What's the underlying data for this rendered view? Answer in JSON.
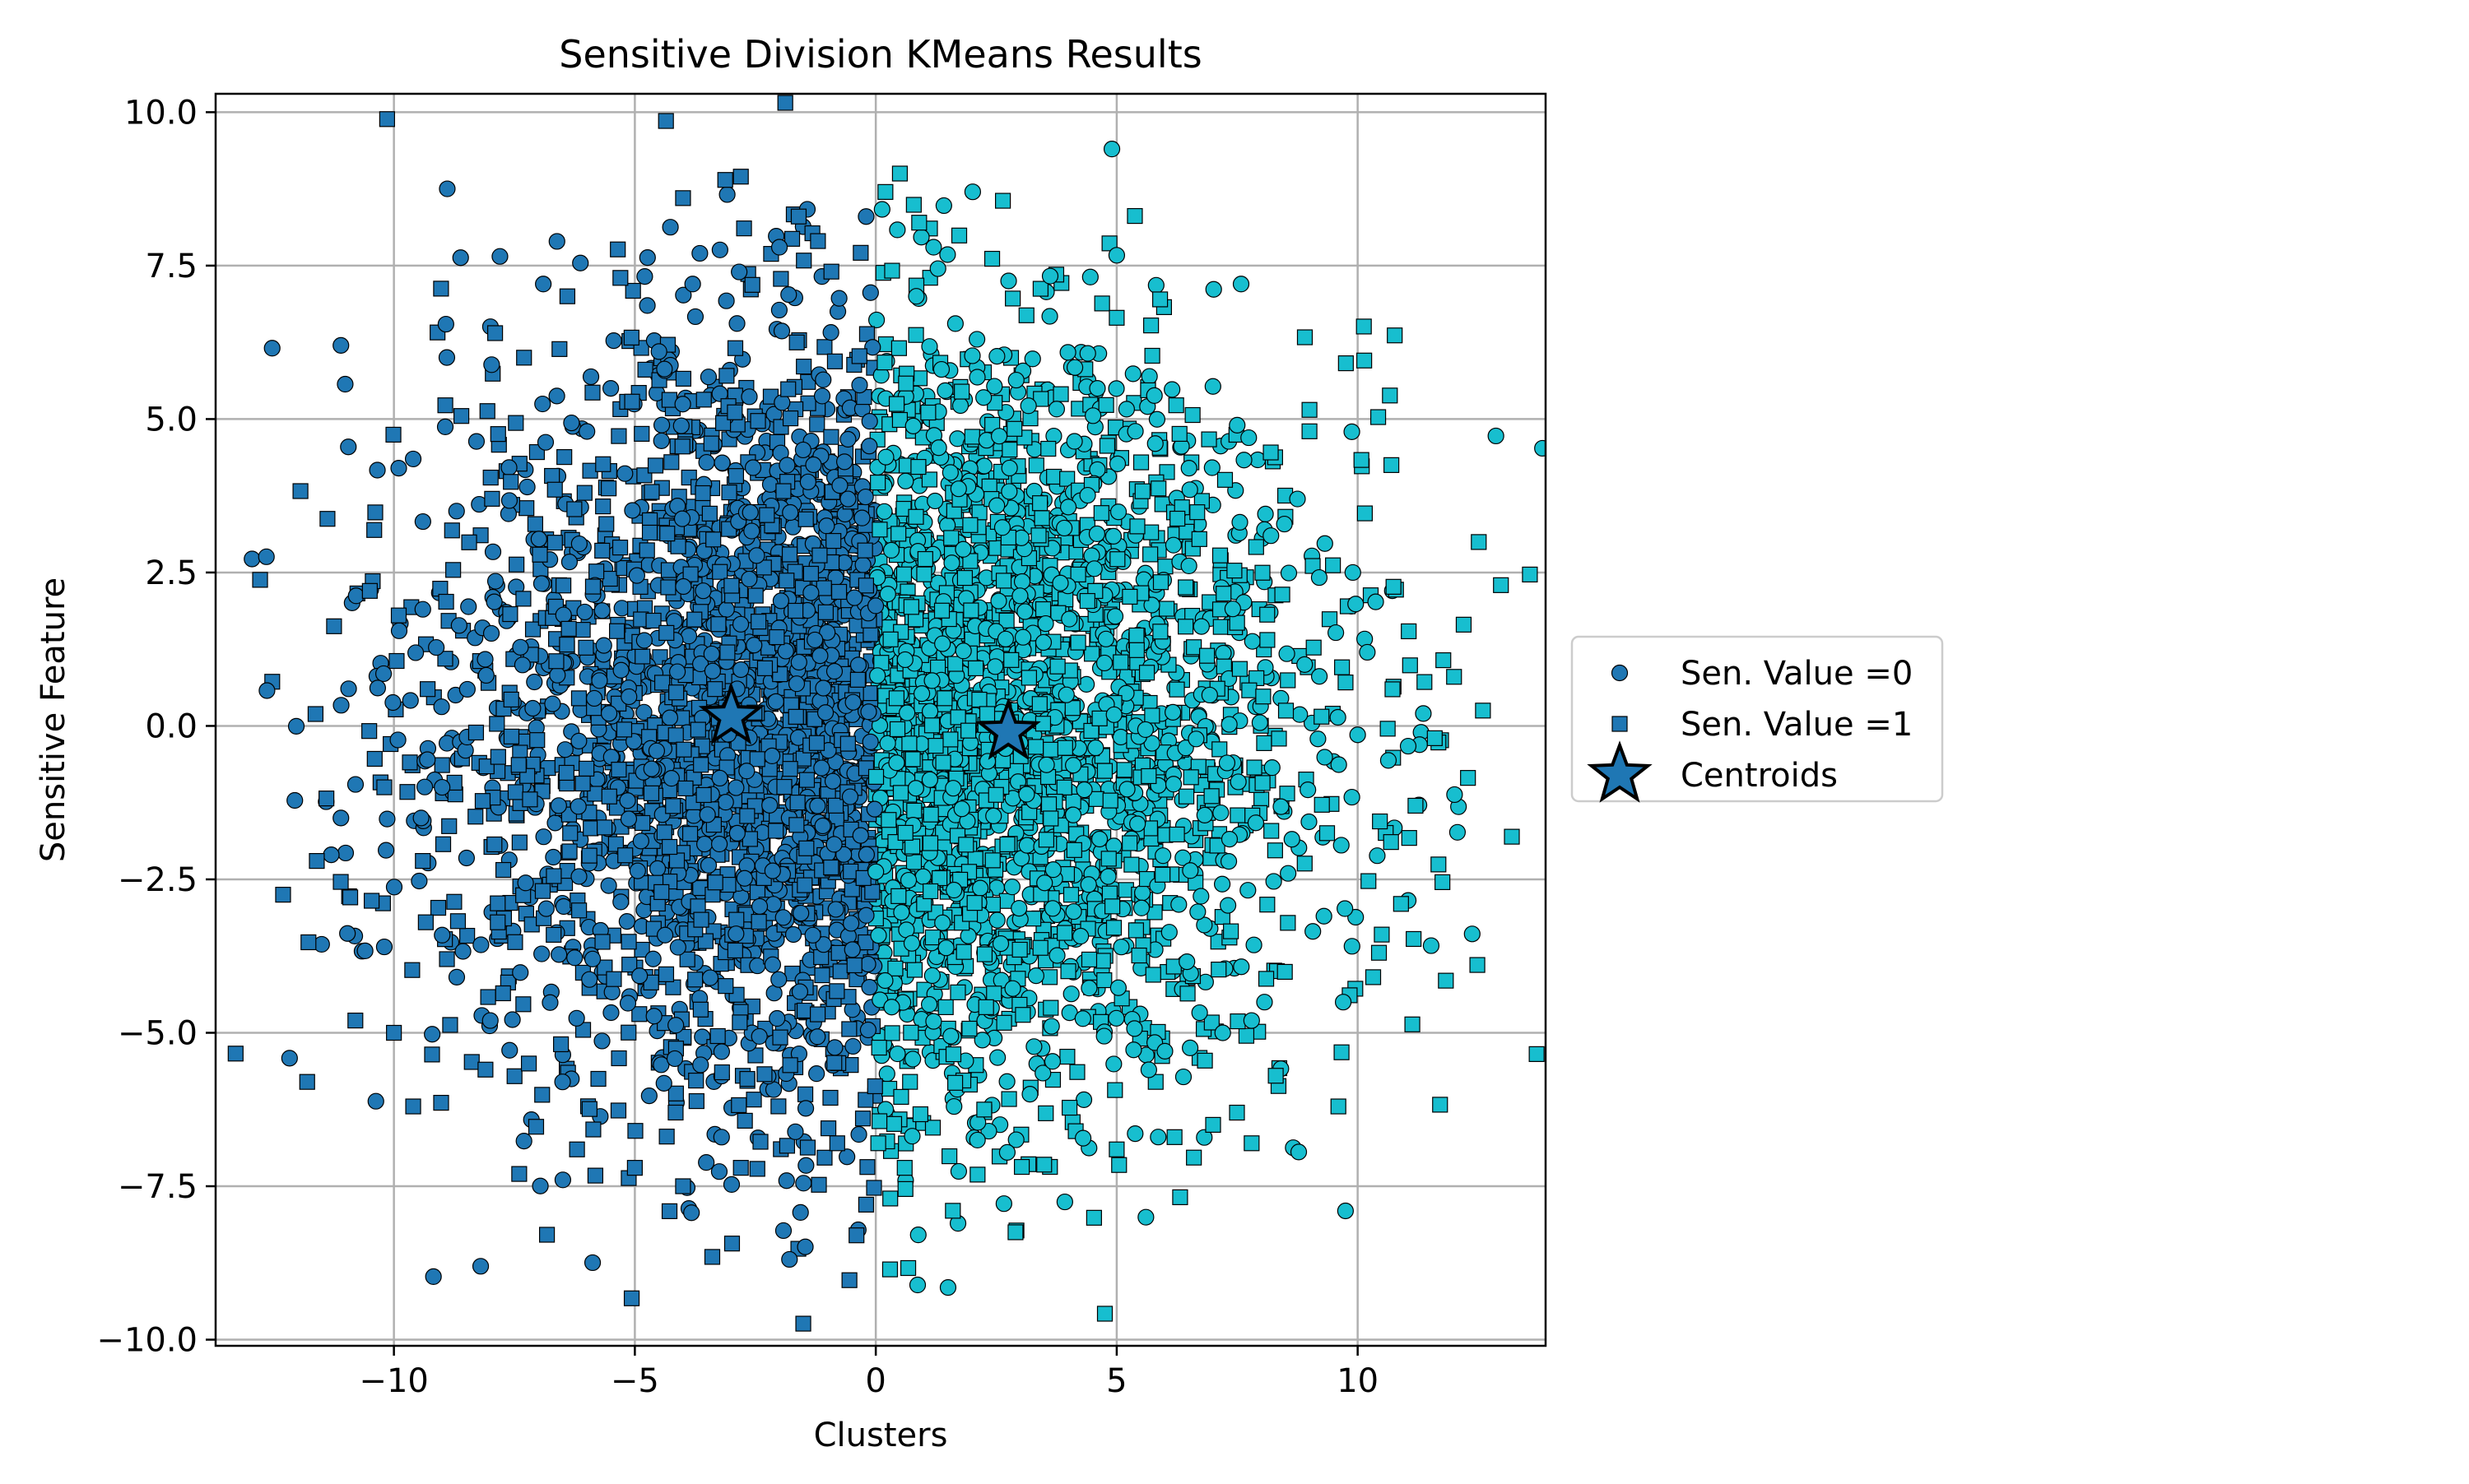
{
  "chart_data": {
    "type": "scatter",
    "title": "Sensitive Division KMeans Results",
    "xlabel": "Clusters",
    "ylabel": "Sensitive Feature",
    "xlim": [
      -13.7,
      13.9
    ],
    "ylim": [
      -10.1,
      10.3
    ],
    "xticks": [
      -10,
      -5,
      0,
      5,
      10
    ],
    "xtick_labels": [
      "−10",
      "−5",
      "0",
      "5",
      "10"
    ],
    "yticks": [
      -10.0,
      -7.5,
      -5.0,
      -2.5,
      0.0,
      2.5,
      5.0,
      7.5,
      10.0
    ],
    "ytick_labels": [
      "−10.0",
      "−7.5",
      "−5.0",
      "−2.5",
      "0.0",
      "2.5",
      "5.0",
      "7.5",
      "10.0"
    ],
    "grid": true,
    "legend_position": "outside right",
    "cluster_colors": [
      "#1f77b4",
      "#17becf"
    ],
    "series": [
      {
        "name": "Sen. Value =0",
        "marker": "circle",
        "color": "#1f77b4",
        "points": [
          [
            -11.1,
            6.2
          ],
          [
            -9.9,
            4.2
          ],
          [
            -9.6,
            4.35
          ],
          [
            -7.8,
            7.65
          ],
          [
            -6.9,
            7.2
          ],
          [
            -11.3,
            -2.1
          ],
          [
            -11.1,
            -1.5
          ],
          [
            -10.2,
            -3.6
          ],
          [
            -9.4,
            1.9
          ],
          [
            -8.7,
            3.5
          ],
          [
            -3.8,
            7.2
          ],
          [
            -2.0,
            7.8
          ],
          [
            -1.5,
            -7.45
          ],
          [
            -0.2,
            8.3
          ],
          [
            -3.2,
            -6.7
          ],
          [
            -5.5,
            5.5
          ],
          [
            -6.5,
            -5.8
          ],
          [
            -8.0,
            -4.8
          ],
          [
            -9.0,
            -1.0
          ],
          [
            -4.5,
            6.1
          ],
          [
            4.9,
            9.4
          ],
          [
            1.5,
            -9.15
          ],
          [
            9.9,
            2.5
          ],
          [
            9.7,
            -4.5
          ],
          [
            7.8,
            -4.8
          ],
          [
            7.5,
            4.9
          ],
          [
            6.5,
            4.2
          ],
          [
            4.6,
            5.5
          ],
          [
            2.1,
            6.3
          ],
          [
            8.2,
            3.1
          ],
          [
            9.3,
            -3.1
          ],
          [
            10.2,
            1.2
          ],
          [
            6.0,
            -5.3
          ],
          [
            3.2,
            -6.0
          ],
          [
            1.2,
            7.8
          ],
          [
            5.8,
            4.6
          ],
          [
            7.2,
            -5.0
          ],
          [
            8.9,
            1.0
          ]
        ]
      },
      {
        "name": "Sen. Value =1",
        "marker": "square",
        "color": "#1f77b4",
        "points": [
          [
            -12.3,
            -2.75
          ],
          [
            -11.8,
            -5.8
          ],
          [
            -11.6,
            -2.2
          ],
          [
            -10.8,
            -4.8
          ],
          [
            -10.5,
            2.2
          ],
          [
            -10.2,
            -1.0
          ],
          [
            -10.0,
            -5.0
          ],
          [
            -9.6,
            -6.2
          ],
          [
            -9.9,
            1.8
          ],
          [
            -9.3,
            0.6
          ],
          [
            -8.6,
            5.05
          ],
          [
            -8.1,
            -5.6
          ],
          [
            -7.9,
            6.4
          ],
          [
            -7.4,
            -7.3
          ],
          [
            -7.3,
            6.0
          ],
          [
            -6.4,
            7.0
          ],
          [
            -6.2,
            -6.9
          ],
          [
            -5.3,
            7.3
          ],
          [
            -5.0,
            -7.2
          ],
          [
            -4.0,
            8.6
          ],
          [
            -4.0,
            -7.5
          ],
          [
            -2.8,
            8.95
          ],
          [
            -2.8,
            -7.2
          ],
          [
            -1.6,
            8.3
          ],
          [
            -1.2,
            7.9
          ],
          [
            -0.8,
            -6.8
          ],
          [
            -0.2,
            -7.8
          ],
          [
            0.2,
            8.7
          ],
          [
            0.3,
            -7.7
          ],
          [
            0.5,
            9.0
          ],
          [
            0.6,
            -7.2
          ],
          [
            0.9,
            8.2
          ],
          [
            1.6,
            -7.9
          ],
          [
            2.9,
            -8.25
          ],
          [
            5.0,
            6.65
          ],
          [
            5.9,
            6.95
          ],
          [
            5.0,
            -6.9
          ],
          [
            6.2,
            -6.7
          ],
          [
            7.0,
            -6.5
          ],
          [
            7.8,
            -6.8
          ],
          [
            8.3,
            -5.7
          ],
          [
            9.0,
            5.15
          ],
          [
            9.0,
            4.8
          ],
          [
            9.6,
            -6.2
          ],
          [
            10.5,
            -3.4
          ],
          [
            10.7,
            4.25
          ],
          [
            11.2,
            -1.3
          ],
          [
            11.6,
            -0.2
          ],
          [
            12.0,
            0.8
          ],
          [
            12.2,
            1.65
          ],
          [
            12.6,
            0.25
          ],
          [
            10.9,
            -2.9
          ],
          [
            -0.4,
            -8.3
          ],
          [
            -9.4,
            -2.2
          ],
          [
            -8.9,
            -3.8
          ]
        ]
      }
    ],
    "centroids": {
      "name": "Centroids",
      "marker": "star",
      "color": "#1f77b4",
      "points": [
        [
          -3.0,
          0.15
        ],
        [
          2.75,
          -0.1
        ]
      ]
    },
    "cluster_boundary_x": 0.0,
    "cloud": {
      "description_excluded": true,
      "n_points": 5200,
      "center": [
        0.0,
        0.0
      ],
      "spread": [
        4.3,
        3.1
      ]
    }
  }
}
